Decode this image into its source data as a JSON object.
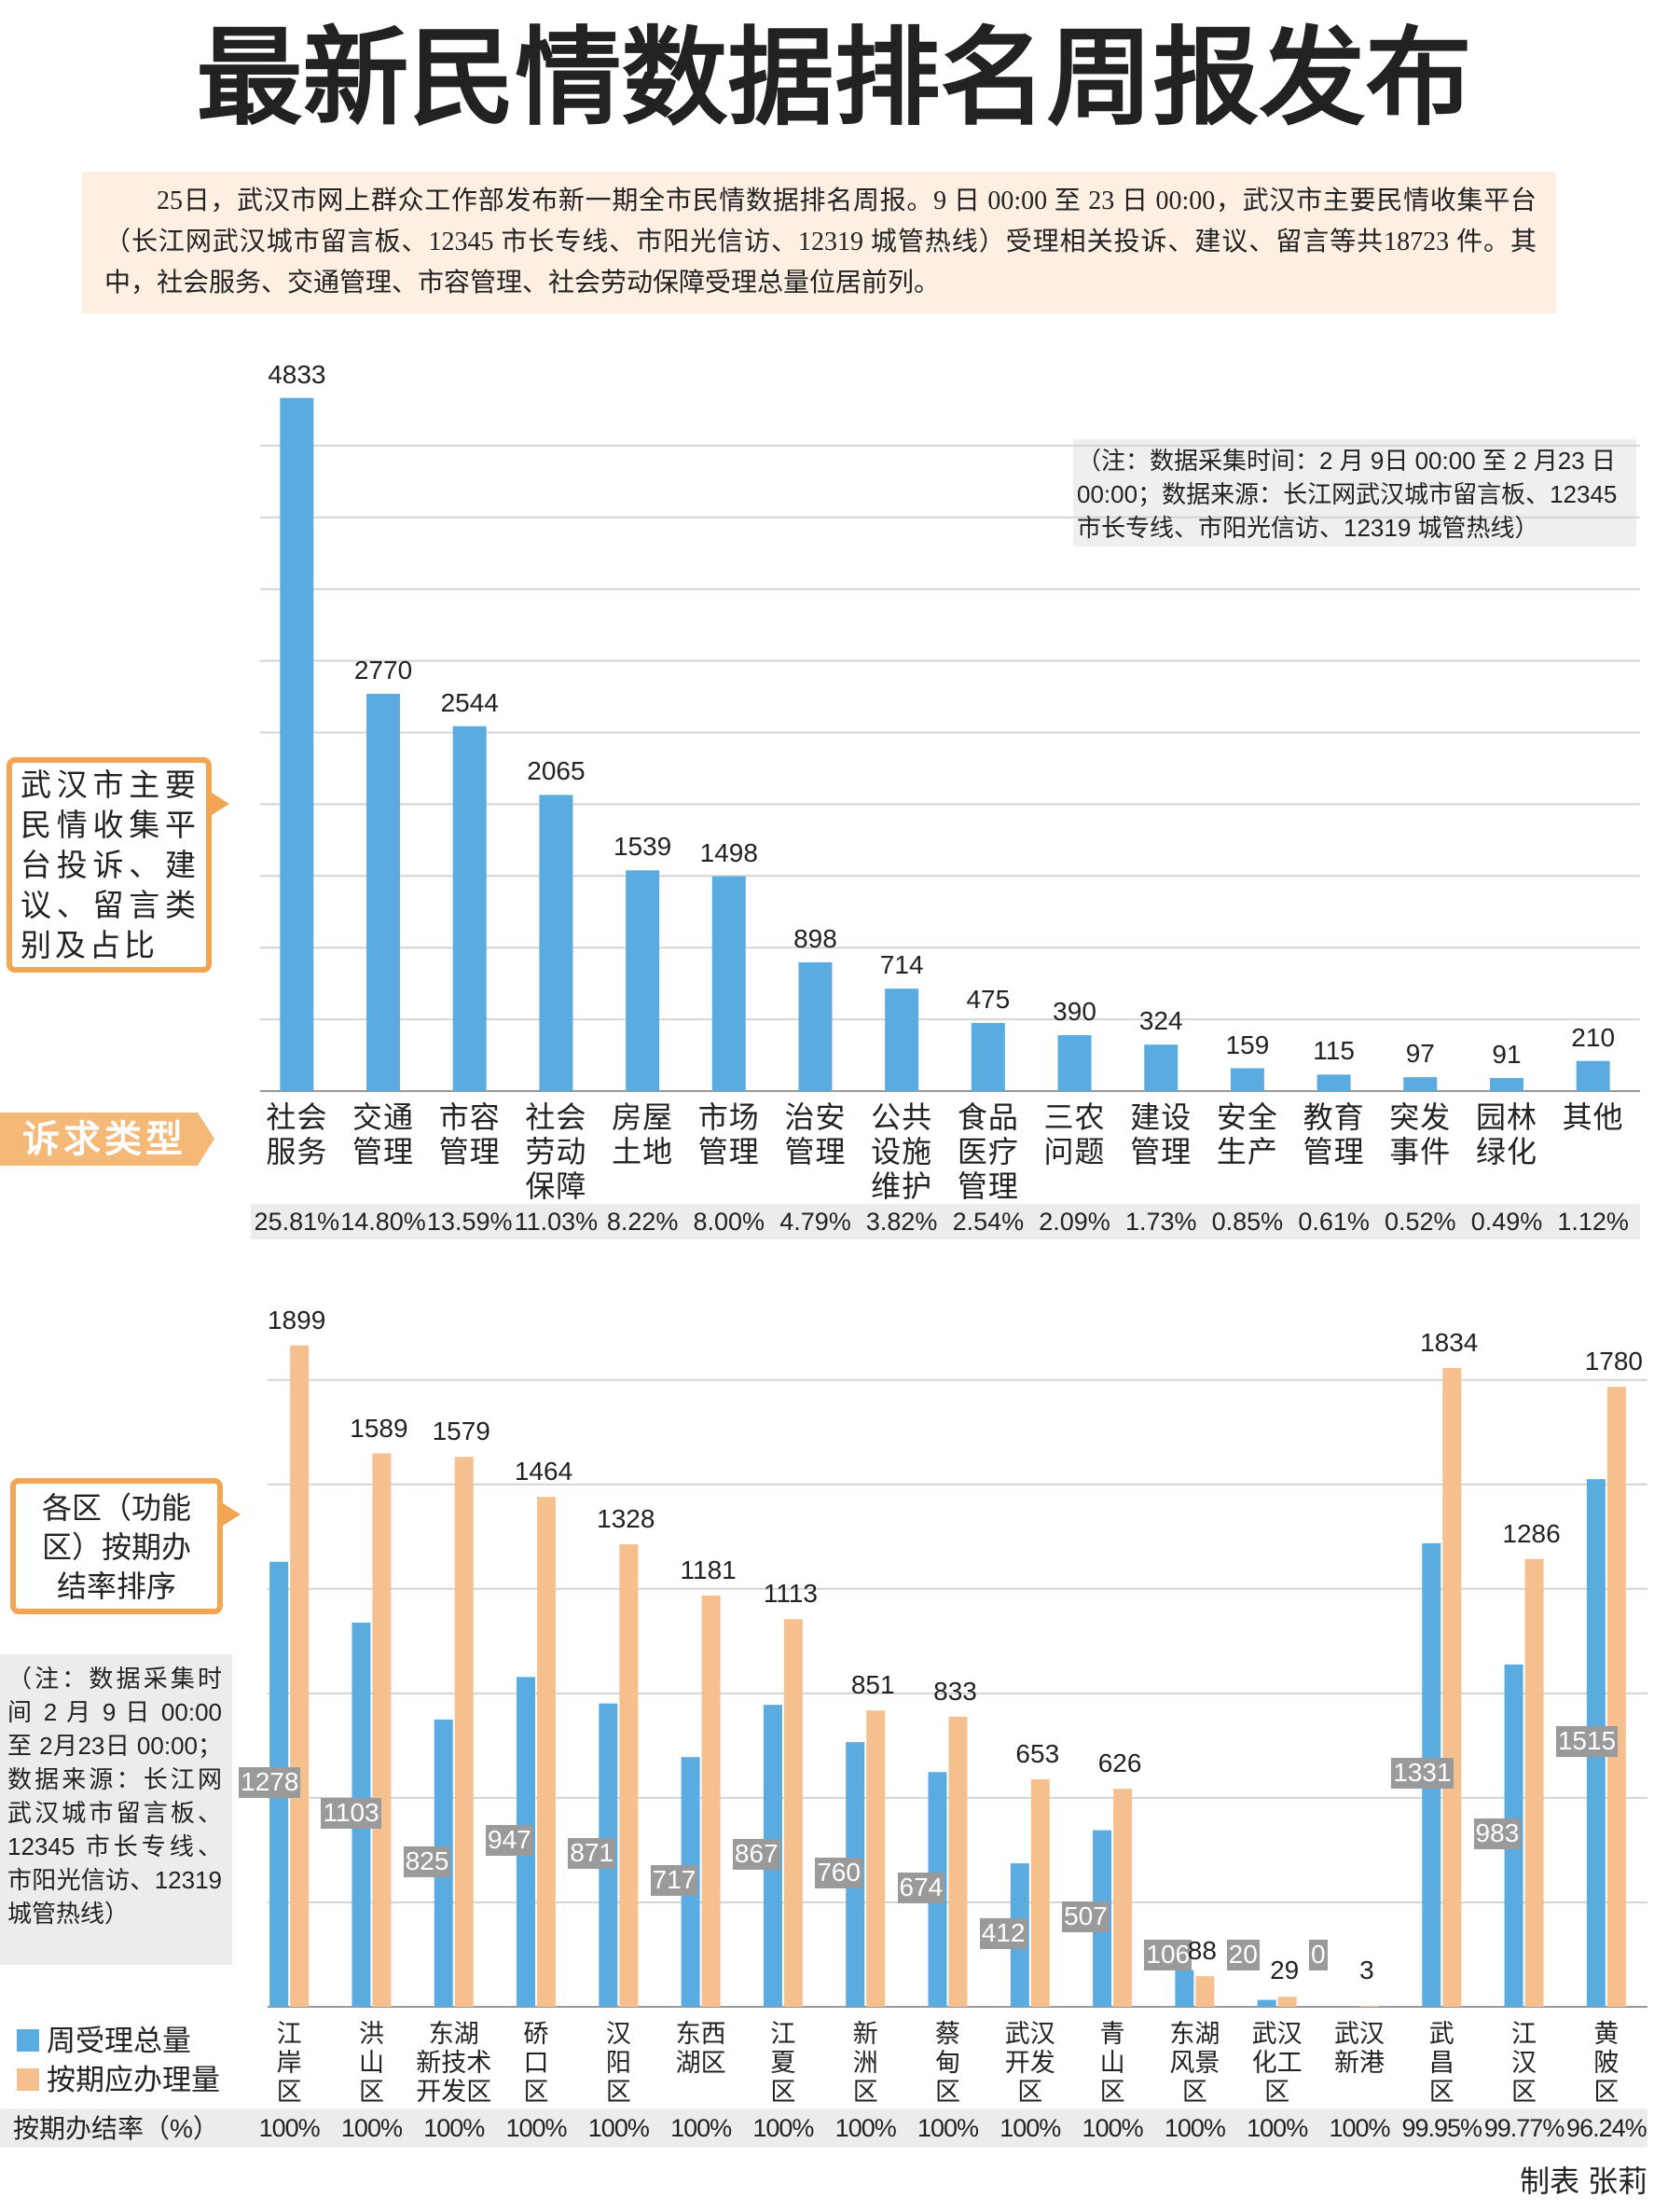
{
  "title": "最新民情数据排名周报发布",
  "intro": "25日，武汉市网上群众工作部发布新一期全市民情数据排名周报。9 日 00:00 至 23 日 00:00，武汉市主要民情收集平台（长江网武汉城市留言板、12345 市长专线、市阳光信访、12319 城管热线）受理相关投诉、建议、留言等共18723 件。其中，社会服务、交通管理、市容管理、社会劳动保障受理总量位居前列。",
  "credit": "制表 张莉",
  "chart_data": [
    {
      "type": "bar",
      "title": "武汉市主要民情收集平台投诉、建议、留言类别及占比",
      "x_label": "诉求类型",
      "note": "（注：数据采集时间：2 月 9日 00:00 至 2 月23 日 00:00；数据来源：长江网武汉城市留言板、12345 市长专线、市阳光信访、12319 城管热线）",
      "categories": [
        "社会服务",
        "交通管理",
        "市容管理",
        "社会劳动保障",
        "房屋土地",
        "市场管理",
        "治安管理",
        "公共设施维护",
        "食品医疗管理",
        "三农问题",
        "建设管理",
        "安全生产",
        "教育管理",
        "突发事件",
        "园林绿化",
        "其他"
      ],
      "values": [
        4833,
        2770,
        2544,
        2065,
        1539,
        1498,
        898,
        714,
        475,
        390,
        324,
        159,
        115,
        97,
        91,
        210
      ],
      "shares": [
        "25.81%",
        "14.80%",
        "13.59%",
        "11.03%",
        "8.22%",
        "8.00%",
        "4.79%",
        "3.82%",
        "2.54%",
        "2.09%",
        "1.73%",
        "0.85%",
        "0.61%",
        "0.52%",
        "0.49%",
        "1.12%"
      ],
      "color": "#5aabe0",
      "ylim": [
        0,
        5000
      ],
      "yticks": [
        0,
        500,
        1000,
        1500,
        2000,
        2500,
        3000,
        3500,
        4000,
        4500
      ],
      "grid": true
    },
    {
      "type": "grouped_bar",
      "title": "各区（功能区）按期办结率排序",
      "note": "（注：数据采集时间 2 月 9 日 00:00 至 2月23日 00:00；数据来源：长江网武汉城市留言板、12345 市长专线、市阳光信访、12319 城管热线）",
      "categories": [
        "江\n岸\n区",
        "洪\n山\n区",
        "东湖\n新技术\n开发区",
        "硚\n口\n区",
        "汉\n阳\n区",
        "东西\n湖区",
        "江\n夏\n区",
        "新\n洲\n区",
        "蔡\n甸\n区",
        "武汉\n开发\n区",
        "青\n山\n区",
        "东湖\n风景\n区",
        "武汉\n化工\n区",
        "武汉\n新港",
        "武\n昌\n区",
        "江\n汉\n区",
        "黄\n陂\n区"
      ],
      "series": [
        {
          "name": "周受理总量",
          "color": "#5aabe0",
          "values": [
            1278,
            1103,
            825,
            947,
            871,
            717,
            867,
            760,
            674,
            412,
            507,
            106,
            20,
            0,
            1331,
            983,
            1515
          ]
        },
        {
          "name": "按期应办理量",
          "color": "#f5c08e",
          "values": [
            1899,
            1589,
            1579,
            1464,
            1328,
            1181,
            1113,
            851,
            833,
            653,
            626,
            88,
            29,
            3,
            1834,
            1286,
            1780
          ]
        }
      ],
      "rate_label": "按期办结率（%）",
      "rates": [
        "100%",
        "100%",
        "100%",
        "100%",
        "100%",
        "100%",
        "100%",
        "100%",
        "100%",
        "100%",
        "100%",
        "100%",
        "100%",
        "100%",
        "99.95%",
        "99.77%",
        "96.24%"
      ],
      "ylim": [
        0,
        2000
      ],
      "yticks": [
        0,
        300,
        600,
        900,
        1200,
        1500,
        1800
      ],
      "grid": true
    }
  ]
}
